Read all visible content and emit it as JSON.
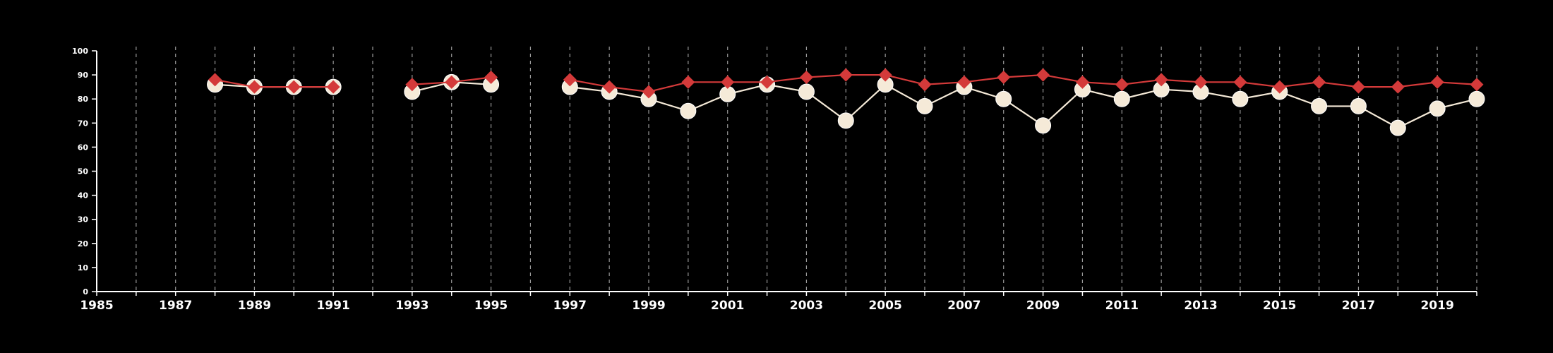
{
  "chart_data": {
    "type": "line",
    "title": "",
    "xlabel": "",
    "ylabel": "",
    "xlim": [
      1985,
      2020
    ],
    "ylim": [
      0,
      100
    ],
    "x_ticks": [
      1985,
      1987,
      1989,
      1991,
      1993,
      1995,
      1997,
      1999,
      2001,
      2003,
      2005,
      2007,
      2009,
      2011,
      2013,
      2015,
      2017,
      2019
    ],
    "y_ticks": [
      0,
      10,
      20,
      30,
      40,
      50,
      60,
      70,
      80,
      90,
      100
    ],
    "vertical_gridlines": "dashed, every year",
    "x": [
      1985,
      1986,
      1987,
      1988,
      1989,
      1990,
      1991,
      1992,
      1993,
      1994,
      1995,
      1996,
      1997,
      1998,
      1999,
      2000,
      2001,
      2002,
      2003,
      2004,
      2005,
      2006,
      2007,
      2008,
      2009,
      2010,
      2011,
      2012,
      2013,
      2014,
      2015,
      2016,
      2017,
      2018,
      2019,
      2020
    ],
    "series": [
      {
        "color": "#f5ead8",
        "marker": "circle",
        "values": [
          null,
          null,
          null,
          86,
          85,
          85,
          85,
          null,
          83,
          87,
          86,
          null,
          85,
          83,
          80,
          75,
          82,
          86,
          83,
          71,
          86,
          77,
          85,
          80,
          69,
          84,
          80,
          84,
          83,
          80,
          83,
          77,
          77,
          68,
          76,
          80
        ]
      },
      {
        "color": "#d43a3a",
        "marker": "diamond",
        "values": [
          null,
          null,
          null,
          88,
          85,
          85,
          85,
          null,
          86,
          87,
          89,
          null,
          88,
          85,
          83,
          87,
          87,
          87,
          89,
          90,
          90,
          86,
          87,
          89,
          90,
          87,
          86,
          88,
          87,
          87,
          85,
          87,
          85,
          85,
          87,
          86
        ]
      }
    ]
  }
}
